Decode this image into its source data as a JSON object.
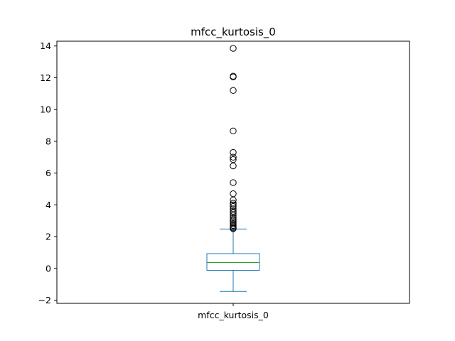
{
  "chart_data": {
    "type": "box",
    "title": "mfcc_kurtosis_0",
    "categories": [
      "mfcc_kurtosis_0"
    ],
    "ylim": [
      -2.2,
      14.3
    ],
    "yticks": [
      -2,
      0,
      2,
      4,
      6,
      8,
      10,
      12,
      14
    ],
    "ytick_labels": [
      "−2",
      "0",
      "2",
      "4",
      "6",
      "8",
      "10",
      "12",
      "14"
    ],
    "box": {
      "whisker_low": -1.45,
      "q1": -0.12,
      "median": 0.37,
      "q3": 0.93,
      "whisker_high": 2.48
    },
    "outliers": [
      2.5,
      2.55,
      2.62,
      2.7,
      2.8,
      2.9,
      3.0,
      3.1,
      3.2,
      3.35,
      3.5,
      3.6,
      3.75,
      3.9,
      4.0,
      4.1,
      4.3,
      4.7,
      5.4,
      6.45,
      6.85,
      7.0,
      7.3,
      8.65,
      11.2,
      12.05,
      12.1,
      13.85
    ],
    "colors": {
      "box": "#1f77b4",
      "median": "#2ca02c",
      "outlier": "#000000"
    },
    "grid": false
  }
}
